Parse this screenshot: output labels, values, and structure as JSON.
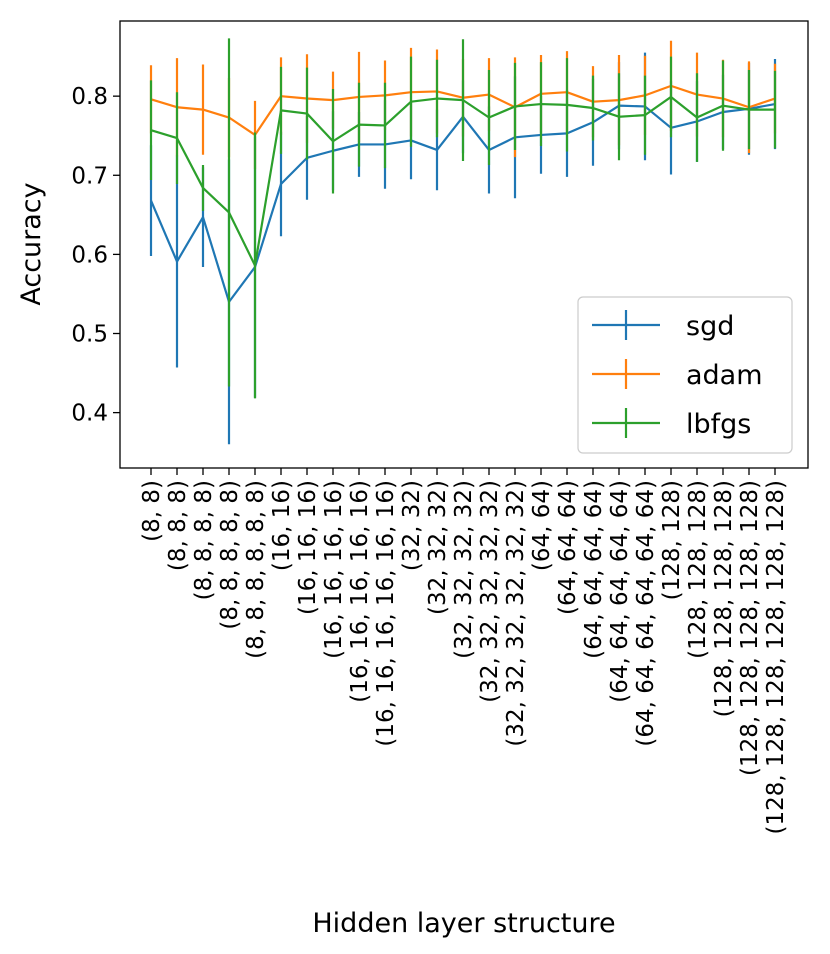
{
  "chart_data": {
    "type": "line",
    "xlabel": "Hidden layer structure",
    "ylabel": "Accuracy",
    "ylim": [
      0.33,
      0.895
    ],
    "yticks": [
      "0.4",
      "0.5",
      "0.6",
      "0.7",
      "0.8"
    ],
    "ytick_values": [
      0.4,
      0.5,
      0.6,
      0.7,
      0.8
    ],
    "categories": [
      "(8, 8)",
      "(8, 8, 8)",
      "(8, 8, 8, 8)",
      "(8, 8, 8, 8, 8)",
      "(8, 8, 8, 8, 8, 8)",
      "(16, 16)",
      "(16, 16, 16)",
      "(16, 16, 16, 16)",
      "(16, 16, 16, 16, 16)",
      "(16, 16, 16, 16, 16, 16)",
      "(32, 32)",
      "(32, 32, 32)",
      "(32, 32, 32, 32)",
      "(32, 32, 32, 32, 32)",
      "(32, 32, 32, 32, 32, 32)",
      "(64, 64)",
      "(64, 64, 64)",
      "(64, 64, 64, 64)",
      "(64, 64, 64, 64, 64)",
      "(64, 64, 64, 64, 64, 64)",
      "(128, 128)",
      "(128, 128, 128)",
      "(128, 128, 128, 128)",
      "(128, 128, 128, 128, 128)",
      "(128, 128, 128, 128, 128, 128)"
    ],
    "legend_position": "lower right",
    "series": [
      {
        "name": "sgd",
        "color": "#1f77b4",
        "values": [
          0.668,
          0.591,
          0.647,
          0.54,
          0.584,
          0.689,
          0.722,
          0.731,
          0.739,
          0.739,
          0.744,
          0.732,
          0.774,
          0.732,
          0.748,
          0.751,
          0.753,
          0.767,
          0.788,
          0.787,
          0.76,
          0.768,
          0.78,
          0.784,
          0.79
        ],
        "errors": [
          0.07,
          0.134,
          0.063,
          0.18,
          0.165,
          0.066,
          0.053,
          0.05,
          0.041,
          0.056,
          0.049,
          0.051,
          0.046,
          0.055,
          0.077,
          0.049,
          0.055,
          0.055,
          0.055,
          0.068,
          0.059,
          0.051,
          0.047,
          0.058,
          0.057
        ]
      },
      {
        "name": "adam",
        "color": "#ff7f0e",
        "values": [
          0.796,
          0.786,
          0.783,
          0.773,
          0.751,
          0.8,
          0.797,
          0.795,
          0.799,
          0.801,
          0.805,
          0.806,
          0.798,
          0.802,
          0.786,
          0.803,
          0.805,
          0.793,
          0.795,
          0.801,
          0.813,
          0.802,
          0.797,
          0.786,
          0.797
        ],
        "errors": [
          0.043,
          0.062,
          0.057,
          0.05,
          0.043,
          0.049,
          0.056,
          0.036,
          0.057,
          0.044,
          0.056,
          0.053,
          0.049,
          0.046,
          0.063,
          0.049,
          0.052,
          0.045,
          0.057,
          0.05,
          0.057,
          0.053,
          0.049,
          0.058,
          0.044
        ]
      },
      {
        "name": "lbfgs",
        "color": "#2ca02c",
        "values": [
          0.757,
          0.747,
          0.684,
          0.653,
          0.586,
          0.782,
          0.778,
          0.743,
          0.764,
          0.763,
          0.793,
          0.797,
          0.795,
          0.773,
          0.787,
          0.79,
          0.789,
          0.785,
          0.774,
          0.776,
          0.799,
          0.773,
          0.788,
          0.783,
          0.783
        ],
        "errors": [
          0.063,
          0.058,
          0.029,
          0.22,
          0.168,
          0.055,
          0.058,
          0.066,
          0.053,
          0.054,
          0.057,
          0.049,
          0.077,
          0.06,
          0.055,
          0.053,
          0.059,
          0.041,
          0.055,
          0.05,
          0.051,
          0.056,
          0.057,
          0.05,
          0.049
        ]
      }
    ]
  }
}
